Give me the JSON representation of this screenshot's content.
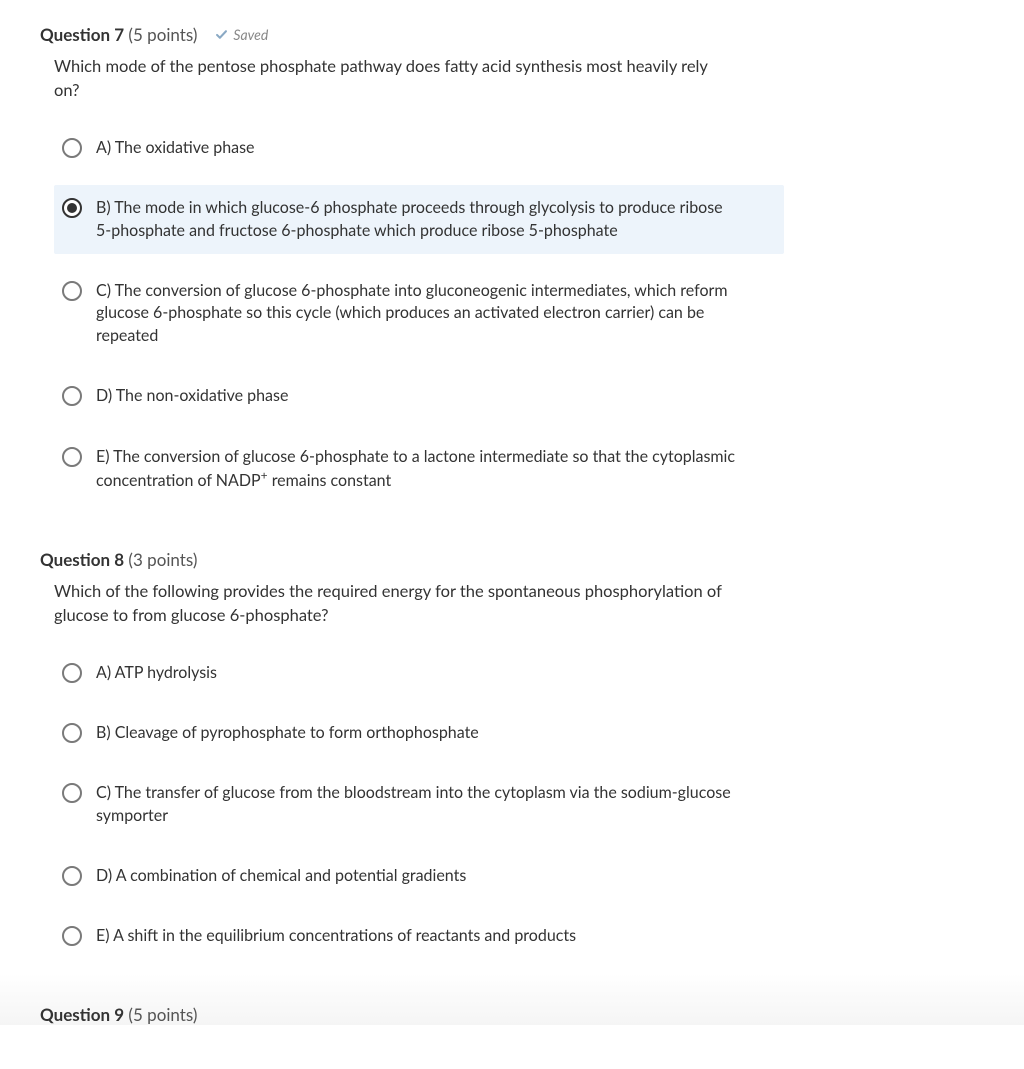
{
  "questions": [
    {
      "number": "7",
      "points": "5 points",
      "saved": true,
      "saved_label": "Saved",
      "text": "Which mode of the pentose phosphate pathway does fatty acid synthesis most heavily rely on?",
      "selected_index": 1,
      "options": [
        {
          "letter": "A)",
          "text": "The oxidative phase"
        },
        {
          "letter": "B)",
          "text": "The mode in which glucose-6 phosphate proceeds through glycolysis to produce ribose 5-phosphate and fructose 6-phosphate which produce ribose 5-phosphate"
        },
        {
          "letter": "C)",
          "text": "The conversion of glucose 6-phosphate into gluconeogenic intermediates, which reform glucose 6-phosphate so this cycle (which produces an activated electron carrier) can be repeated"
        },
        {
          "letter": "D)",
          "text": "The non-oxidative phase"
        },
        {
          "letter": "E)",
          "text": "The conversion of glucose 6-phosphate to a lactone intermediate so that the cytoplasmic concentration of NADP⁺ remains constant"
        }
      ]
    },
    {
      "number": "8",
      "points": "3 points",
      "saved": false,
      "saved_label": "",
      "text": "Which of the following provides the required energy for the spontaneous phosphorylation of glucose to from glucose 6-phosphate?",
      "selected_index": -1,
      "options": [
        {
          "letter": "A)",
          "text": "ATP hydrolysis"
        },
        {
          "letter": "B)",
          "text": "Cleavage of pyrophosphate to form orthophosphate"
        },
        {
          "letter": "C)",
          "text": "The transfer of glucose from the bloodstream into the cytoplasm via the sodium-glucose symporter"
        },
        {
          "letter": "D)",
          "text": "A combination of chemical and potential gradients"
        },
        {
          "letter": "E)",
          "text": "A shift in the equilibrium concentrations of reactants and products"
        }
      ]
    },
    {
      "number": "9",
      "points": "5 points",
      "saved": false,
      "saved_label": "",
      "text": "",
      "selected_index": -1,
      "options": []
    }
  ],
  "labels": {
    "question_word": "Question"
  },
  "colors": {
    "selected_bg": "#edf4fb",
    "text": "#333333",
    "muted": "#888888",
    "check": "#8aa9c4"
  }
}
